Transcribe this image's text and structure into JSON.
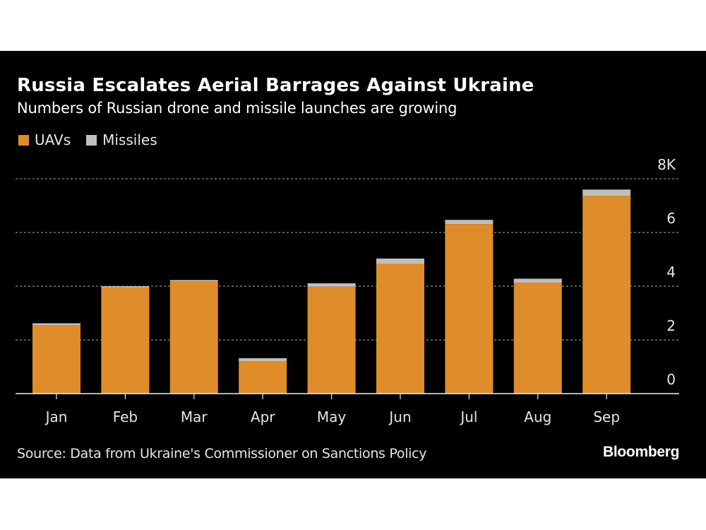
{
  "header": {
    "title": "Russia Escalates Aerial Barrages Against Ukraine",
    "subtitle": "Numbers of Russian drone and missile launches are growing"
  },
  "legend": [
    {
      "label": "UAVs",
      "color": "#DE8D2A"
    },
    {
      "label": "Missiles",
      "color": "#BEBEBE"
    }
  ],
  "footer": {
    "source": "Source: Data from Ukraine's Commissioner on Sanctions Policy",
    "logo": "Bloomberg"
  },
  "chart_data": {
    "type": "bar",
    "stacked": true,
    "title": "Russia Escalates Aerial Barrages Against Ukraine",
    "subtitle": "Numbers of Russian drone and missile launches are growing",
    "xlabel": "",
    "ylabel": "",
    "categories": [
      "Jan",
      "Feb",
      "Mar",
      "Apr",
      "May",
      "Jun",
      "Jul",
      "Aug",
      "Sep"
    ],
    "series": [
      {
        "name": "UAVs",
        "color": "#DE8D2A",
        "values": [
          2550,
          3950,
          4180,
          1210,
          3980,
          4830,
          6310,
          4130,
          7360
        ]
      },
      {
        "name": "Missiles",
        "color": "#BEBEBE",
        "values": [
          70,
          50,
          50,
          110,
          130,
          200,
          160,
          150,
          240
        ]
      }
    ],
    "ylim": [
      0,
      8000
    ],
    "yticks": [
      0,
      2000,
      4000,
      6000,
      8000
    ],
    "ytick_labels": [
      "0",
      "2",
      "4",
      "6",
      "8K"
    ],
    "y_axis_side": "right",
    "grid": true,
    "grid_style": "dotted",
    "legend_position": "top-left",
    "background": "#000000"
  }
}
